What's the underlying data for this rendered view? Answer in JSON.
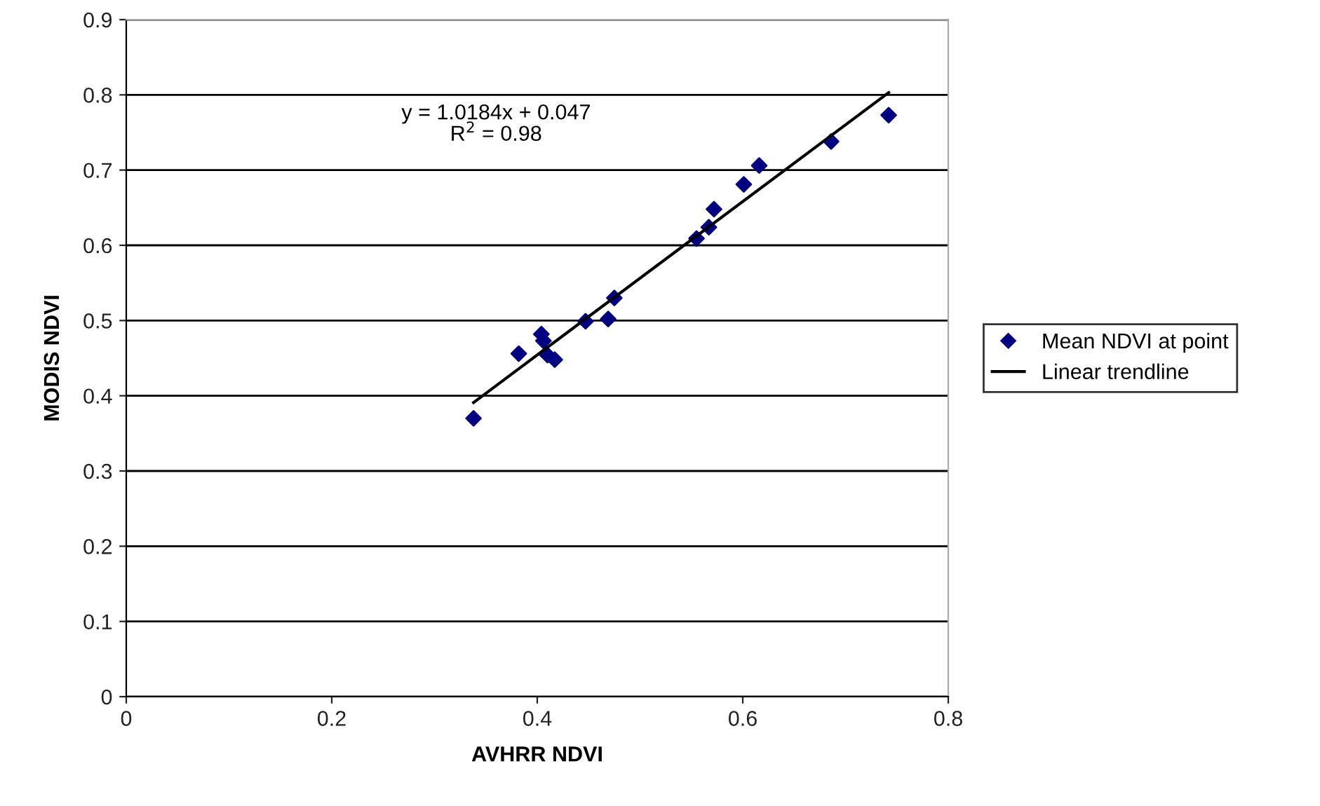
{
  "chart_data": {
    "type": "scatter",
    "xlabel": "AVHRR NDVI",
    "ylabel": "MODIS NDVI",
    "xlim": [
      0,
      0.8
    ],
    "xticks": [
      0,
      0.2,
      0.4,
      0.6,
      0.8
    ],
    "ylim": [
      0,
      0.9
    ],
    "yticks": [
      0,
      0.1,
      0.2,
      0.3,
      0.4,
      0.5,
      0.6,
      0.7,
      0.8,
      0.9
    ],
    "grid": "y",
    "legend": "right",
    "marker": "diamond",
    "series": [
      {
        "name": "Mean NDVI at point",
        "color": "#000080",
        "x": [
          0.338,
          0.382,
          0.404,
          0.406,
          0.41,
          0.417,
          0.447,
          0.469,
          0.475,
          0.555,
          0.567,
          0.572,
          0.601,
          0.616,
          0.686,
          0.742
        ],
        "values": [
          0.37,
          0.456,
          0.482,
          0.473,
          0.454,
          0.448,
          0.499,
          0.502,
          0.53,
          0.609,
          0.624,
          0.648,
          0.681,
          0.706,
          0.738,
          0.773
        ]
      },
      {
        "name": "Linear trendline",
        "color": "#000000",
        "type": "line",
        "marker": "none",
        "line_style": "solid",
        "x": [
          0.338,
          0.742
        ],
        "values": [
          0.391,
          0.803
        ]
      }
    ],
    "annotations": [
      "y = 1.0184x + 0.047\nR$^{2}$ = 0.98"
    ]
  }
}
